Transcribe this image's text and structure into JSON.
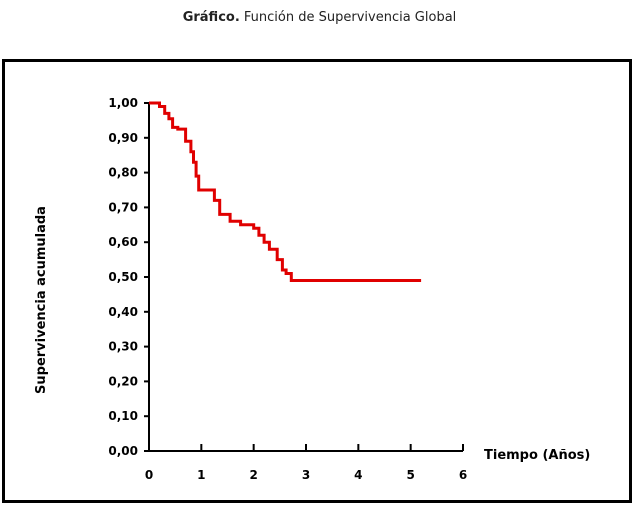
{
  "caption": {
    "bold": "Gráfico.",
    "text": " Función de Supervivencia Global"
  },
  "chart_data": {
    "type": "line",
    "title": "",
    "xlabel": "Tiempo (Años)",
    "ylabel": "Supervivencia acumulada",
    "xlim": [
      0,
      6
    ],
    "ylim": [
      0,
      1
    ],
    "xticks": [
      "0",
      "1",
      "2",
      "3",
      "4",
      "5",
      "6"
    ],
    "yticks": [
      "0,00",
      "0,10",
      "0,20",
      "0,30",
      "0,40",
      "0,50",
      "0,60",
      "0,70",
      "0,80",
      "0,90",
      "1,00"
    ],
    "grid": false,
    "line_color": "#e00000",
    "series": [
      {
        "step": true,
        "x": [
          0,
          0.2,
          0.3,
          0.38,
          0.45,
          0.55,
          0.7,
          0.8,
          0.85,
          0.9,
          0.95,
          1.05,
          1.25,
          1.35,
          1.55,
          1.75,
          2.0,
          2.1,
          2.2,
          2.3,
          2.45,
          2.55,
          2.62,
          2.72,
          5.2
        ],
        "y": [
          1.0,
          0.99,
          0.97,
          0.955,
          0.93,
          0.925,
          0.89,
          0.86,
          0.83,
          0.79,
          0.75,
          0.75,
          0.72,
          0.68,
          0.66,
          0.65,
          0.64,
          0.62,
          0.6,
          0.58,
          0.55,
          0.52,
          0.51,
          0.49,
          0.49
        ]
      }
    ]
  }
}
